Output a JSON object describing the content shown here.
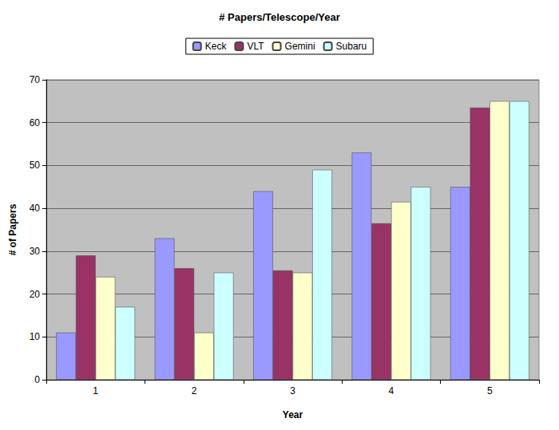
{
  "chart_data": {
    "type": "bar",
    "title": "# Papers/Telescope/Year",
    "x_label": "Year",
    "y_label": "# of Papers",
    "categories": [
      "1",
      "2",
      "3",
      "4",
      "5"
    ],
    "series": [
      {
        "name": "Keck",
        "color": "#9999ff",
        "values": [
          11,
          33,
          44,
          53,
          45
        ]
      },
      {
        "name": "VLT",
        "color": "#993366",
        "values": [
          29,
          26,
          25.5,
          36.5,
          63.5
        ]
      },
      {
        "name": "Gemini",
        "color": "#ffffcc",
        "values": [
          24,
          11,
          25,
          41.5,
          65
        ]
      },
      {
        "name": "Subaru",
        "color": "#ccffff",
        "values": [
          17,
          25,
          49,
          45,
          65
        ]
      }
    ],
    "ylim": [
      0,
      70
    ],
    "yticks": [
      0,
      10,
      20,
      30,
      40,
      50,
      60,
      70
    ],
    "grid": true,
    "legend": "top"
  }
}
